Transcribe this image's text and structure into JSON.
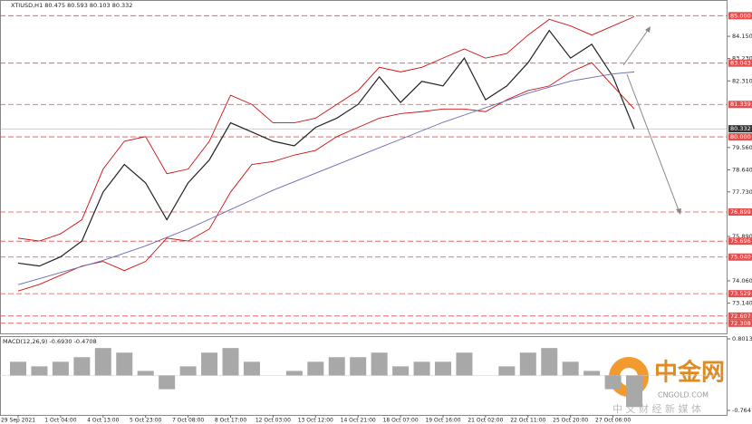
{
  "chart_data": [
    {
      "type": "line",
      "title": "XTIUSD,H1  80.475 80.593 80.103 80.332",
      "categories": [
        "29 Sep 2021",
        null,
        "1 Oct 04:00",
        null,
        "4 Oct 13:00",
        null,
        "5 Oct 23:00",
        null,
        "7 Oct 08:00",
        null,
        "8 Oct 17:00",
        null,
        "12 Oct 03:00",
        null,
        "13 Oct 12:00",
        null,
        "14 Oct 21:00",
        null,
        "18 Oct 07:00",
        null,
        "19 Oct 16:00",
        null,
        "21 Oct 02:00",
        null,
        "22 Oct 11:00",
        null,
        "25 Oct 20:00",
        null,
        "27 Oct 06:00",
        null
      ],
      "series": [
        {
          "color": "#222222",
          "values": [
            74.79,
            74.67,
            75.05,
            75.7,
            77.72,
            78.86,
            78.1,
            76.58,
            78.1,
            79.05,
            80.58,
            80.2,
            79.82,
            79.63,
            80.39,
            80.77,
            81.34,
            82.48,
            81.42,
            82.29,
            82.1,
            83.25,
            81.53,
            82.1,
            83.06,
            84.39,
            83.25,
            83.82,
            82.48,
            80.33
          ]
        },
        {
          "color": "#d01010",
          "values": [
            75.82,
            75.7,
            76.0,
            76.58,
            78.67,
            79.82,
            80.01,
            78.48,
            78.67,
            79.82,
            81.72,
            81.34,
            80.58,
            80.58,
            80.77,
            81.34,
            81.91,
            82.87,
            82.68,
            82.87,
            83.25,
            83.63,
            83.25,
            83.44,
            84.2,
            84.85,
            84.58,
            84.2,
            84.58,
            84.96
          ]
        },
        {
          "color": "#d01010",
          "values": [
            73.64,
            73.91,
            74.29,
            74.67,
            74.86,
            74.48,
            74.86,
            75.82,
            75.7,
            76.2,
            77.72,
            78.86,
            78.98,
            79.25,
            79.44,
            80.01,
            80.39,
            80.77,
            80.96,
            81.04,
            81.15,
            81.15,
            81.04,
            81.53,
            81.91,
            82.1,
            82.68,
            83.06,
            82.1,
            81.15
          ]
        },
        {
          "color": "#6a6ab0",
          "values": [
            73.9,
            74.15,
            74.4,
            74.65,
            74.9,
            75.2,
            75.5,
            75.85,
            76.2,
            76.6,
            77.0,
            77.4,
            77.8,
            78.15,
            78.5,
            78.85,
            79.2,
            79.55,
            79.9,
            80.25,
            80.6,
            80.9,
            81.2,
            81.5,
            81.8,
            82.05,
            82.3,
            82.45,
            82.6,
            82.68
          ]
        }
      ],
      "ylim": [
        71.89,
        85.61
      ],
      "yticks": [
        {
          "value": 84.15,
          "label": "84.150"
        },
        {
          "value": 83.23,
          "label": "83.230"
        },
        {
          "value": 82.31,
          "label": "82.310"
        },
        {
          "value": 79.56,
          "label": "79.560"
        },
        {
          "value": 78.64,
          "label": "78.640"
        },
        {
          "value": 77.73,
          "label": "77.730"
        },
        {
          "value": 75.89,
          "label": "75.890"
        },
        {
          "value": 74.06,
          "label": "74.060"
        },
        {
          "value": 73.14,
          "label": "73.140"
        }
      ],
      "levels": [
        {
          "value": 85,
          "label": "85.000"
        },
        {
          "value": 83.043,
          "label": "83.043"
        },
        {
          "value": 81.339,
          "label": "81.339"
        },
        {
          "value": 80,
          "label": "80.000"
        },
        {
          "value": 76.899,
          "label": "76.899"
        },
        {
          "value": 75.696,
          "label": "75.696"
        },
        {
          "value": 75.04,
          "label": "75.040"
        },
        {
          "value": 73.529,
          "label": "73.529"
        },
        {
          "value": 72.607,
          "label": "72.607"
        },
        {
          "value": 72.308,
          "label": "72.308"
        }
      ],
      "level_color": "#e05050",
      "last_price": 80.332
    },
    {
      "type": "bar",
      "title": "MACD(12,26,9) -0.6930 -0.4708",
      "values": [
        0.3,
        0.2,
        0.3,
        0.4,
        0.6,
        0.5,
        0.1,
        -0.3,
        0.2,
        0.5,
        0.6,
        0.3,
        0.0,
        0.1,
        0.3,
        0.4,
        0.4,
        0.5,
        0.2,
        0.3,
        0.3,
        0.5,
        0.0,
        0.2,
        0.5,
        0.6,
        0.3,
        0.1,
        -0.3,
        -0.69
      ],
      "color": "#a8a8a8",
      "ylim": [
        -0.863,
        0.841
      ],
      "yticks": [
        0.8013,
        -0.7641
      ]
    }
  ],
  "watermark": {
    "logo": "中金网",
    "site": "CNGOLD.COM",
    "tagline": "中 文 财 经 新 媒 体"
  }
}
